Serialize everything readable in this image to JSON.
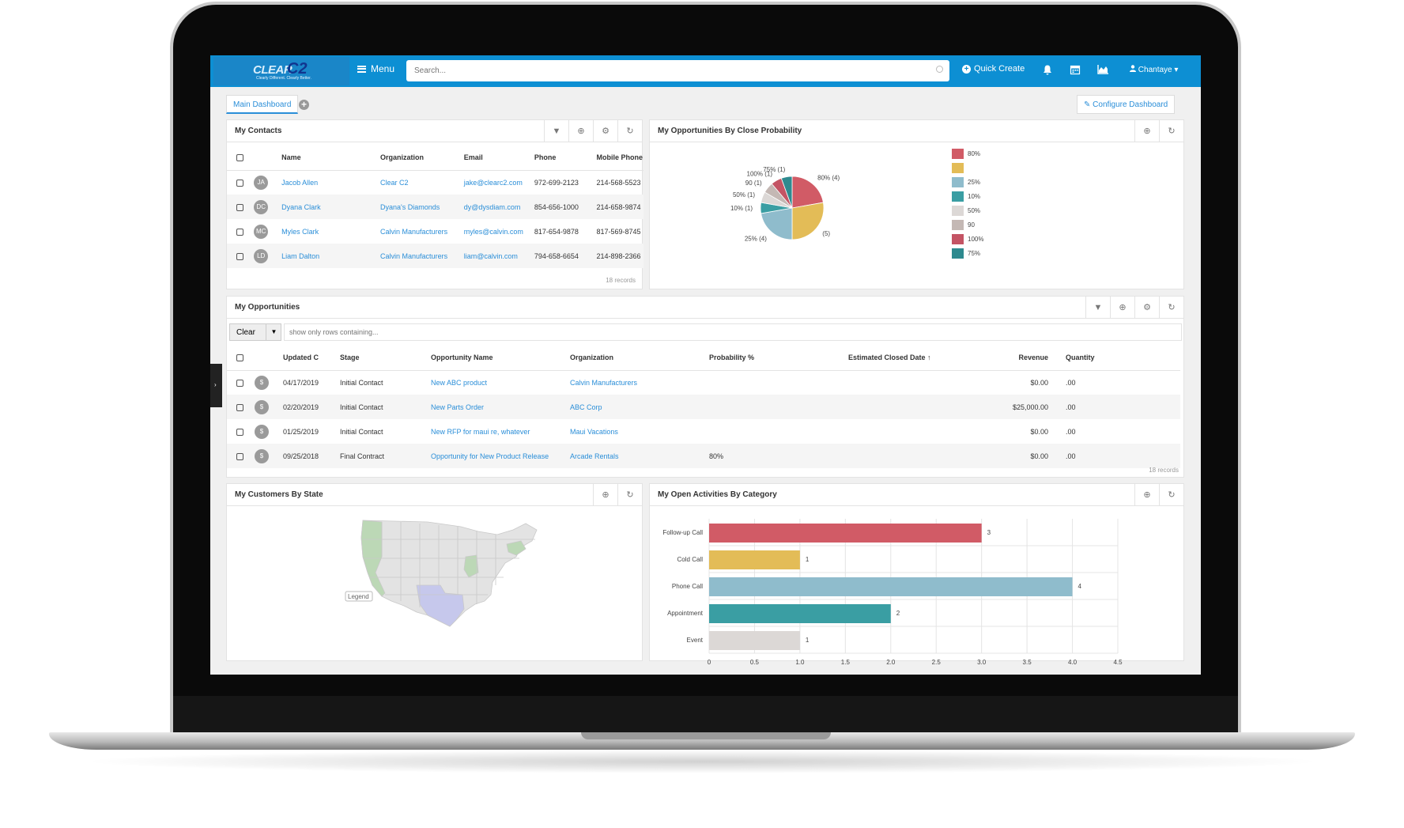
{
  "app": {
    "logo_text": "CLEAR",
    "logo_mark": "C2",
    "logo_tagline": "Clearly Different. Clearly Better.",
    "menu_label": "Menu",
    "search_placeholder": "Search...",
    "quick_create": "Quick Create",
    "user_name": "Chantaye",
    "icons": [
      "bars-icon",
      "search-icon",
      "bell-icon",
      "calendar-icon",
      "area-chart-icon",
      "user-icon"
    ]
  },
  "tabs": {
    "main": "Main Dashboard",
    "configure": "Configure Dashboard"
  },
  "contacts": {
    "title": "My Contacts",
    "headers": [
      "Name",
      "Organization",
      "Email",
      "Phone",
      "Mobile Phone"
    ],
    "rows": [
      {
        "initials": "JA",
        "name": "Jacob Allen",
        "org": "Clear C2",
        "email": "jake@clearc2.com",
        "phone": "972-699-2123",
        "mobile": "214-568-5523"
      },
      {
        "initials": "DC",
        "name": "Dyana Clark",
        "org": "Dyana's Diamonds",
        "email": "dy@dysdiam.com",
        "phone": "854-656-1000",
        "mobile": "214-658-9874"
      },
      {
        "initials": "MC",
        "name": "Myles Clark",
        "org": "Calvin Manufacturers",
        "email": "myles@calvin.com",
        "phone": "817-654-9878",
        "mobile": "817-569-8745"
      },
      {
        "initials": "LD",
        "name": "Liam Dalton",
        "org": "Calvin Manufacturers",
        "email": "liam@calvin.com",
        "phone": "794-658-6654",
        "mobile": "214-898-2366"
      }
    ],
    "records": "18 records"
  },
  "probability": {
    "title": "My Opportunities By Close Probability",
    "legend": [
      {
        "label": "80%",
        "color": "#d15b66"
      },
      {
        "label": "",
        "color": "#e3bc57"
      },
      {
        "label": "25%",
        "color": "#8fbccc"
      },
      {
        "label": "10%",
        "color": "#3a9ea3"
      },
      {
        "label": "50%",
        "color": "#dcd8d6"
      },
      {
        "label": "90",
        "color": "#c4b8b4"
      },
      {
        "label": "100%",
        "color": "#c45464"
      },
      {
        "label": "75%",
        "color": "#2e8a8f"
      }
    ]
  },
  "chart_data": [
    {
      "type": "pie",
      "title": "My Opportunities By Close Probability",
      "slices": [
        {
          "label": "80% (4)",
          "value": 4,
          "color": "#d15b66"
        },
        {
          "label": "(5)",
          "value": 5,
          "color": "#e3bc57"
        },
        {
          "label": "25% (4)",
          "value": 4,
          "color": "#8fbccc"
        },
        {
          "label": "10% (1)",
          "value": 1,
          "color": "#3a9ea3"
        },
        {
          "label": "50% (1)",
          "value": 1,
          "color": "#dcd8d6"
        },
        {
          "label": "90 (1)",
          "value": 1,
          "color": "#c4b8b4"
        },
        {
          "label": "100% (1)",
          "value": 1,
          "color": "#c45464"
        },
        {
          "label": "75% (1)",
          "value": 1,
          "color": "#2e8a8f"
        }
      ]
    },
    {
      "type": "bar",
      "orientation": "horizontal",
      "title": "My Open Activities By Category",
      "categories": [
        "Follow-up Call",
        "Cold Call",
        "Phone Call",
        "Appointment",
        "Event"
      ],
      "values": [
        3,
        1,
        4,
        2,
        1
      ],
      "colors": [
        "#d15b66",
        "#e3bc57",
        "#8fbccc",
        "#3a9ea3",
        "#dcd8d6"
      ],
      "xlim": [
        0,
        4.5
      ],
      "ticks": [
        "0",
        "0.5",
        "1.0",
        "1.5",
        "2.0",
        "2.5",
        "3.0",
        "3.5",
        "4.0",
        "4.5"
      ],
      "grid": true
    }
  ],
  "opportunities": {
    "title": "My Opportunities",
    "clear_label": "Clear",
    "filter_placeholder": "show only rows containing...",
    "headers": [
      "Updated C",
      "Stage",
      "Opportunity Name",
      "Organization",
      "Probability %",
      "Estimated Closed Date",
      "Revenue",
      "Quantity"
    ],
    "rows": [
      {
        "updated": "04/17/2019",
        "stage": "Initial Contact",
        "name": "New ABC product",
        "org": "Calvin Manufacturers",
        "prob": "",
        "revenue": "$0.00",
        "qty": ".00"
      },
      {
        "updated": "02/20/2019",
        "stage": "Initial Contact",
        "name": "New Parts Order",
        "org": "ABC Corp",
        "prob": "",
        "revenue": "$25,000.00",
        "qty": ".00"
      },
      {
        "updated": "01/25/2019",
        "stage": "Initial Contact",
        "name": "New RFP for maui re, whatever",
        "org": "Maui Vacations",
        "prob": "",
        "revenue": "$0.00",
        "qty": ".00"
      },
      {
        "updated": "09/25/2018",
        "stage": "Final Contract",
        "name": "Opportunity for New Product Release",
        "org": "Arcade Rentals",
        "prob": "80%",
        "revenue": "$0.00",
        "qty": ".00"
      }
    ],
    "records": "18 records"
  },
  "customers": {
    "title": "My Customers By State",
    "legend": "Legend"
  },
  "activities": {
    "title": "My Open Activities By Category"
  }
}
